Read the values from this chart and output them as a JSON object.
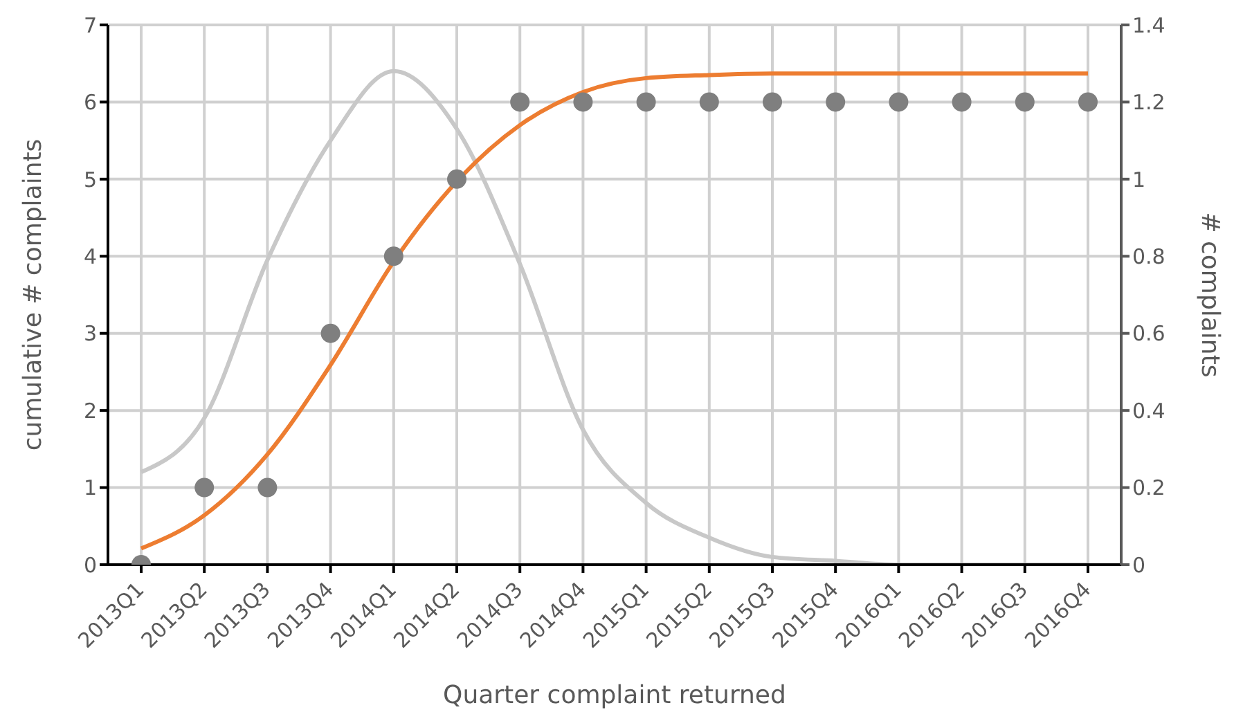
{
  "chart_data": {
    "type": "line",
    "xlabel": "Quarter complaint returned",
    "ylabel": "cumulative # complaints",
    "y2label": "# complaints",
    "categories": [
      "2013Q1",
      "2013Q2",
      "2013Q3",
      "2013Q4",
      "2014Q1",
      "2014Q2",
      "2014Q3",
      "2014Q4",
      "2015Q1",
      "2015Q2",
      "2015Q3",
      "2015Q4",
      "2016Q1",
      "2016Q2",
      "2016Q3",
      "2016Q4"
    ],
    "series": [
      {
        "axis": "y2",
        "color": "#c8c8c8",
        "marker": "none",
        "values": [
          0.24,
          0.38,
          0.79,
          1.1,
          1.28,
          1.13,
          0.78,
          0.35,
          0.16,
          0.07,
          0.02,
          0.01,
          0,
          0,
          0,
          0
        ]
      },
      {
        "color": "#ed7d31",
        "marker": "none",
        "values": [
          0.21,
          0.64,
          1.43,
          2.59,
          3.93,
          4.97,
          5.7,
          6.13,
          6.31,
          6.35,
          6.37,
          6.37,
          6.37,
          6.37,
          6.37,
          6.37
        ]
      },
      {
        "type": "scatter",
        "color": "#7f7f7f",
        "marker": "circle",
        "values": [
          0,
          1,
          1,
          3,
          4,
          5,
          6,
          6,
          6,
          6,
          6,
          6,
          6,
          6,
          6,
          6
        ]
      }
    ],
    "ylim": [
      0,
      7
    ],
    "yticks": [
      0,
      1,
      2,
      3,
      4,
      5,
      6,
      7
    ],
    "y2lim": [
      0,
      1.4
    ],
    "y2ticks": [
      0,
      0.2,
      0.4,
      0.6,
      0.8,
      1,
      1.2,
      1.4
    ],
    "grid": true
  }
}
